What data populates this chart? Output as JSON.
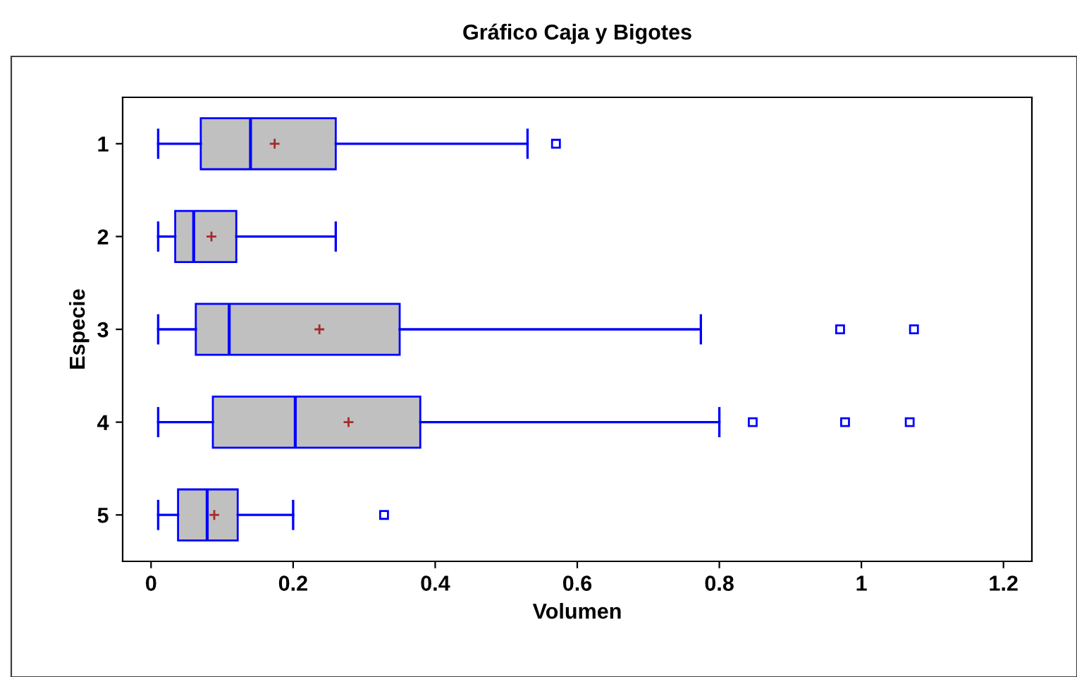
{
  "chart_data": {
    "type": "box",
    "title": "Gráfico Caja y Bigotes",
    "xlabel": "Volumen",
    "ylabel": "Especie",
    "orientation": "horizontal",
    "categories": [
      "1",
      "2",
      "3",
      "4",
      "5"
    ],
    "boxes": [
      {
        "low": 0.01,
        "q1": 0.07,
        "median": 0.14,
        "q3": 0.26,
        "high": 0.53,
        "mean": 0.174,
        "outliers": [
          0.57
        ]
      },
      {
        "low": 0.01,
        "q1": 0.034,
        "median": 0.06,
        "q3": 0.12,
        "high": 0.26,
        "mean": 0.085
      },
      {
        "low": 0.01,
        "q1": 0.063,
        "median": 0.11,
        "q3": 0.35,
        "high": 0.774,
        "mean": 0.237,
        "outliers": [
          0.97,
          1.074
        ]
      },
      {
        "low": 0.01,
        "q1": 0.087,
        "median": 0.203,
        "q3": 0.379,
        "high": 0.8,
        "mean": 0.278,
        "outliers": [
          0.847,
          0.977,
          1.068
        ]
      },
      {
        "low": 0.01,
        "q1": 0.038,
        "median": 0.079,
        "q3": 0.122,
        "high": 0.2,
        "mean": 0.089,
        "outliers": [
          0.328
        ]
      }
    ],
    "color": "#c0c0c0",
    "xlim": [
      -0.04,
      1.24
    ],
    "xticks": [
      0,
      0.2,
      0.4,
      0.6,
      0.8,
      1,
      1.2
    ],
    "grid": false,
    "legend": false
  }
}
